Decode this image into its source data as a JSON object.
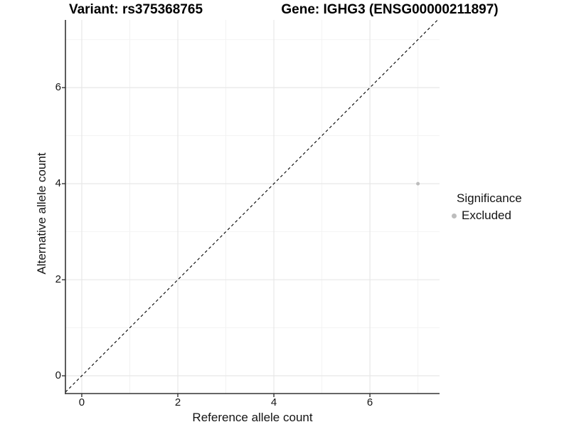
{
  "header": {
    "title_left": "Variant: rs375368765",
    "title_right": "Gene: IGHG3 (ENSG00000211897)"
  },
  "chart_data": {
    "type": "scatter",
    "title_left": "Variant: rs375368765",
    "title_right": "Gene: IGHG3 (ENSG00000211897)",
    "xlabel": "Reference allele count",
    "ylabel": "Alternative allele count",
    "xlim": [
      -0.34,
      7.45
    ],
    "ylim": [
      -0.37,
      7.41
    ],
    "x_ticks": [
      0,
      2,
      4,
      6
    ],
    "y_ticks": [
      0,
      2,
      4,
      6
    ],
    "x_minor_ticks": [
      1,
      3,
      5,
      7
    ],
    "y_minor_ticks": [
      1,
      3,
      5,
      7
    ],
    "grid": true,
    "reference_line": {
      "slope": 1,
      "intercept": 0,
      "style": "dashed",
      "color": "#000000"
    },
    "series": [
      {
        "name": "Excluded",
        "color": "#bdbdbd",
        "point_radius": 2.5,
        "points": [
          {
            "x": 7,
            "y": 4
          }
        ]
      }
    ],
    "legend": {
      "title": "Significance",
      "position": "right",
      "items": [
        {
          "label": "Excluded",
          "color": "#bdbdbd"
        }
      ]
    }
  },
  "colors": {
    "background": "#ffffff",
    "grid_major": "#e7e7e7",
    "grid_minor": "#f2f2f2",
    "axis_line": "#333333",
    "tick_mark": "#333333",
    "text": "#141414",
    "point": "#bdbdbd"
  }
}
